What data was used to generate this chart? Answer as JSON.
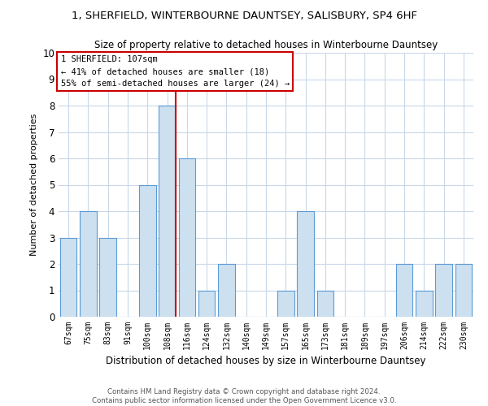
{
  "title_line1": "1, SHERFIELD, WINTERBOURNE DAUNTSEY, SALISBURY, SP4 6HF",
  "title_line2": "Size of property relative to detached houses in Winterbourne Dauntsey",
  "xlabel": "Distribution of detached houses by size in Winterbourne Dauntsey",
  "ylabel": "Number of detached properties",
  "categories": [
    "67sqm",
    "75sqm",
    "83sqm",
    "91sqm",
    "100sqm",
    "108sqm",
    "116sqm",
    "124sqm",
    "132sqm",
    "140sqm",
    "149sqm",
    "157sqm",
    "165sqm",
    "173sqm",
    "181sqm",
    "189sqm",
    "197sqm",
    "206sqm",
    "214sqm",
    "222sqm",
    "230sqm"
  ],
  "values": [
    3,
    4,
    3,
    0,
    5,
    8,
    6,
    1,
    2,
    0,
    0,
    1,
    4,
    1,
    0,
    0,
    0,
    2,
    1,
    2,
    2
  ],
  "bar_color": "#cce0f0",
  "bar_edge_color": "#5b9bd5",
  "highlight_index": 5,
  "highlight_line_color": "#cc0000",
  "ylim": [
    0,
    10
  ],
  "yticks": [
    0,
    1,
    2,
    3,
    4,
    5,
    6,
    7,
    8,
    9,
    10
  ],
  "annotation_text": "1 SHERFIELD: 107sqm\n← 41% of detached houses are smaller (18)\n55% of semi-detached houses are larger (24) →",
  "annotation_box_color": "#cc0000",
  "footer_line1": "Contains HM Land Registry data © Crown copyright and database right 2024.",
  "footer_line2": "Contains public sector information licensed under the Open Government Licence v3.0.",
  "grid_color": "#c8d8e8",
  "background_color": "#ffffff"
}
